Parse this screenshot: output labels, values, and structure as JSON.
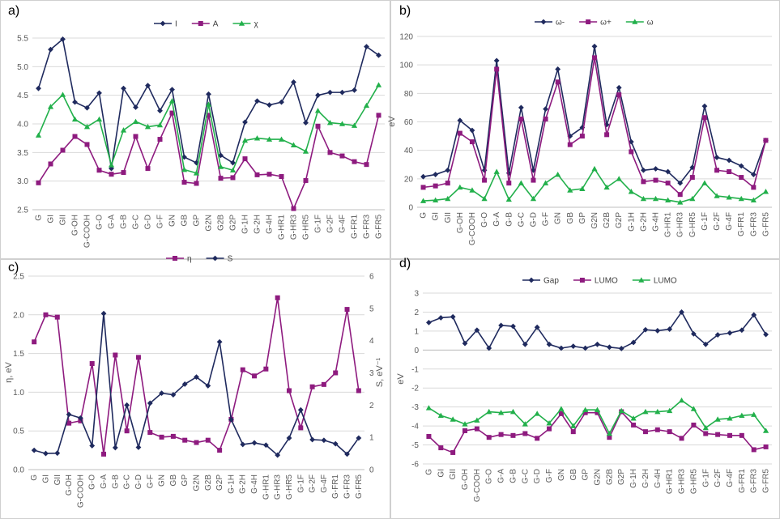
{
  "categories": [
    "G",
    "GI",
    "GII",
    "G-OH",
    "G-COOH",
    "G-O",
    "G-A",
    "G-B",
    "G-C",
    "G-D",
    "G-F",
    "GN",
    "GB",
    "GP",
    "G2N",
    "G2B",
    "G2P",
    "G-1H",
    "G-2H",
    "G-4H",
    "G-HR1",
    "G-HR3",
    "G-HR5",
    "G-1F",
    "G-2F",
    "G-4F",
    "G-FR1",
    "G-FR3",
    "G-FR5"
  ],
  "colors": {
    "navy": "#1f2a5e",
    "purple": "#8e1b7f",
    "green": "#22b04b",
    "grid": "#d9d9d9",
    "axis": "#bfbfbf"
  },
  "chart_data": [
    {
      "id": "a",
      "panel_label": "a)",
      "type": "line",
      "ylim": [
        2.5,
        5.5
      ],
      "yticks": [
        "2.5",
        "3.0",
        "3.5",
        "4.0",
        "4.5",
        "5.0",
        "5.5"
      ],
      "ylabel": "",
      "series": [
        {
          "name": "I",
          "color": "navy",
          "marker": "diamond",
          "values": [
            4.62,
            5.3,
            5.48,
            4.38,
            4.28,
            4.54,
            3.22,
            4.62,
            4.29,
            4.67,
            4.23,
            4.6,
            3.42,
            3.32,
            4.52,
            3.45,
            3.32,
            4.03,
            4.4,
            4.33,
            4.38,
            4.73,
            4.02,
            4.5,
            4.55,
            4.55,
            4.59,
            5.35,
            5.2
          ]
        },
        {
          "name": "A",
          "color": "purple",
          "marker": "square",
          "values": [
            2.97,
            3.3,
            3.54,
            3.78,
            3.64,
            3.19,
            3.12,
            3.15,
            3.78,
            3.22,
            3.73,
            4.19,
            2.98,
            2.96,
            4.15,
            3.05,
            3.06,
            3.39,
            3.11,
            3.12,
            3.08,
            2.52,
            3.01,
            3.96,
            3.5,
            3.44,
            3.34,
            3.29,
            4.15
          ]
        },
        {
          "name": "χ",
          "color": "green",
          "marker": "triangle",
          "values": [
            3.8,
            4.3,
            4.51,
            4.08,
            3.95,
            4.08,
            3.28,
            3.89,
            4.04,
            3.95,
            3.98,
            4.4,
            3.2,
            3.14,
            4.34,
            3.25,
            3.19,
            3.71,
            3.75,
            3.73,
            3.73,
            3.63,
            3.52,
            4.23,
            4.02,
            4.0,
            3.97,
            4.32,
            4.68
          ]
        }
      ]
    },
    {
      "id": "b",
      "panel_label": "b)",
      "type": "line",
      "ylim": [
        0,
        120
      ],
      "yticks": [
        "0",
        "20",
        "40",
        "60",
        "80",
        "100",
        "120"
      ],
      "ylabel": "eV",
      "series": [
        {
          "name": "ω-",
          "color": "navy",
          "marker": "diamond",
          "values": [
            21.5,
            23,
            26,
            61,
            54,
            26,
            103,
            24,
            70,
            26,
            69,
            97,
            50,
            56,
            113,
            58,
            84,
            46,
            26,
            27,
            25,
            17,
            28,
            71,
            35,
            33,
            29,
            23,
            47
          ]
        },
        {
          "name": "ω+",
          "color": "purple",
          "marker": "square",
          "values": [
            14,
            15,
            17,
            52,
            46,
            19,
            97,
            17,
            62,
            19,
            62,
            88,
            44,
            50,
            105,
            51,
            79,
            39,
            18,
            19,
            17,
            9,
            21,
            63,
            26,
            25,
            21,
            14,
            47
          ]
        },
        {
          "name": "ω",
          "color": "green",
          "marker": "triangle",
          "values": [
            4.5,
            5,
            6,
            14,
            12,
            6,
            25,
            5.5,
            17,
            6,
            17,
            23,
            12,
            13,
            27,
            14,
            20,
            11,
            6,
            6,
            5,
            3.5,
            6,
            17,
            8,
            7,
            6,
            5,
            11
          ]
        }
      ]
    },
    {
      "id": "c",
      "panel_label": "c)",
      "type": "line",
      "ylim": [
        0,
        2.5
      ],
      "yticks": [
        "0.0",
        "0.5",
        "1.0",
        "1.5",
        "2.0",
        "2.5"
      ],
      "y2lim": [
        0,
        6
      ],
      "y2ticks": [
        "0",
        "1",
        "2",
        "3",
        "4",
        "5",
        "6"
      ],
      "ylabel": "η, eV",
      "y2label": "S, eV⁻¹",
      "series": [
        {
          "name": "η",
          "color": "purple",
          "marker": "square",
          "axis": "left",
          "values": [
            1.65,
            2.0,
            1.97,
            0.6,
            0.63,
            1.37,
            0.2,
            1.48,
            0.5,
            1.45,
            0.48,
            0.42,
            0.43,
            0.38,
            0.35,
            0.38,
            0.25,
            0.65,
            1.29,
            1.21,
            1.3,
            2.22,
            1.02,
            0.54,
            1.07,
            1.1,
            1.25,
            2.07,
            1.02
          ]
        },
        {
          "name": "S",
          "color": "navy",
          "marker": "diamond",
          "axis": "right",
          "values": [
            0.6,
            0.5,
            0.51,
            1.71,
            1.6,
            0.74,
            4.84,
            0.68,
            2.0,
            0.69,
            2.06,
            2.37,
            2.32,
            2.65,
            2.87,
            2.6,
            3.96,
            1.55,
            0.78,
            0.83,
            0.76,
            0.45,
            0.98,
            1.85,
            0.93,
            0.91,
            0.8,
            0.48,
            0.98
          ]
        }
      ]
    },
    {
      "id": "d",
      "panel_label": "d)",
      "type": "line",
      "ylim": [
        -6,
        3
      ],
      "yticks": [
        "-6",
        "-5",
        "-4",
        "-3",
        "-2",
        "-1",
        "0",
        "1",
        "2",
        "3"
      ],
      "ylabel": "eV",
      "series": [
        {
          "name": "Gap",
          "color": "navy",
          "marker": "diamond",
          "values": [
            1.45,
            1.7,
            1.75,
            0.35,
            1.05,
            0.1,
            1.3,
            1.25,
            0.3,
            1.2,
            0.3,
            0.1,
            0.2,
            0.1,
            0.3,
            0.15,
            0.08,
            0.4,
            1.07,
            1.02,
            1.1,
            2.0,
            0.85,
            0.3,
            0.8,
            0.9,
            1.05,
            1.85,
            0.82
          ]
        },
        {
          "name": "LUMO",
          "color": "purple",
          "marker": "square",
          "values": [
            -4.55,
            -5.15,
            -5.4,
            -4.25,
            -4.15,
            -4.6,
            -4.45,
            -4.5,
            -4.4,
            -4.65,
            -4.15,
            -3.35,
            -4.3,
            -3.3,
            -3.3,
            -4.6,
            -3.25,
            -3.95,
            -4.3,
            -4.2,
            -4.3,
            -4.65,
            -3.95,
            -4.4,
            -4.45,
            -4.5,
            -4.5,
            -5.25,
            -5.1
          ]
        },
        {
          "name": "LUMO",
          "color": "green",
          "marker": "triangle",
          "values": [
            -3.05,
            -3.45,
            -3.65,
            -3.9,
            -3.7,
            -3.25,
            -3.3,
            -3.25,
            -3.9,
            -3.35,
            -3.85,
            -3.1,
            -4.0,
            -3.15,
            -3.15,
            -4.4,
            -3.2,
            -3.6,
            -3.25,
            -3.25,
            -3.2,
            -2.65,
            -3.1,
            -4.1,
            -3.65,
            -3.6,
            -3.45,
            -3.4,
            -4.25
          ]
        }
      ]
    }
  ]
}
